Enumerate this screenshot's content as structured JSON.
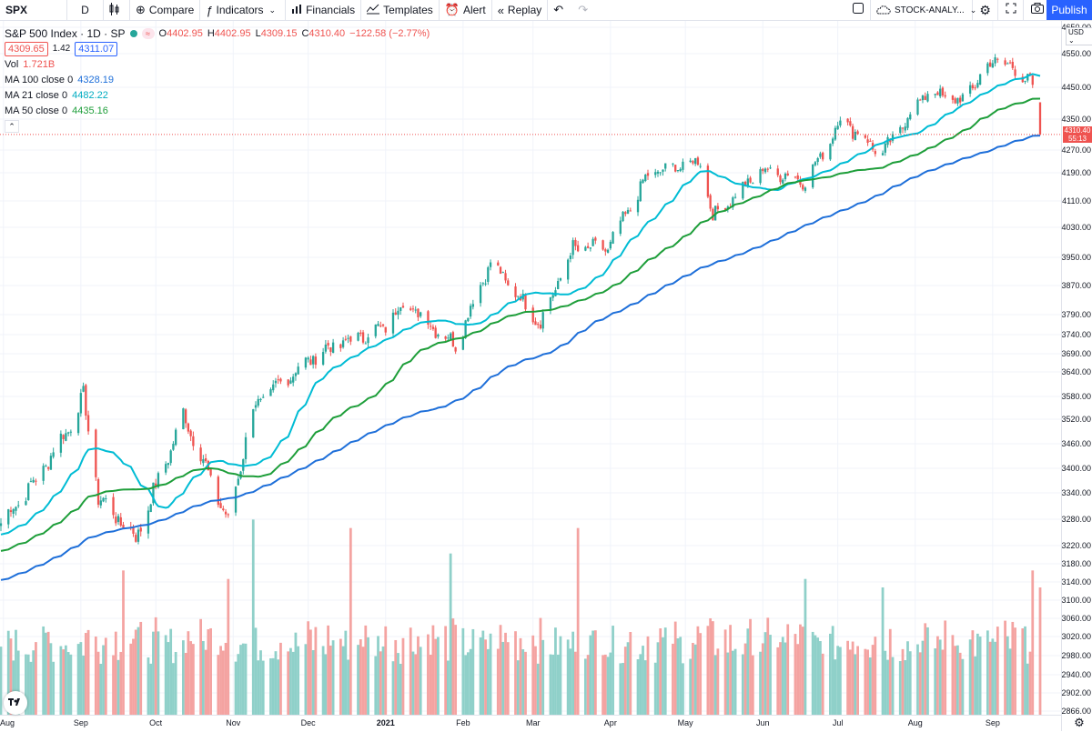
{
  "toolbar": {
    "symbol": "SPX",
    "resolution": "D",
    "compare": "Compare",
    "indicators": "Indicators",
    "financials": "Financials",
    "templates": "Templates",
    "alert": "Alert",
    "replay": "Replay",
    "layout_name": "STOCK-ANALY...",
    "publish": "Publish"
  },
  "legend": {
    "title": "S&P 500 Index · 1D · SP",
    "ohlc": {
      "o": "4402.95",
      "h": "4402.95",
      "l": "4309.15",
      "c": "4310.40",
      "chg": "−122.58 (−2.77%)"
    },
    "bid": "4309.65",
    "spread": "1.42",
    "ask": "4311.07",
    "vol_label": "Vol",
    "vol_value": "1.721B",
    "ma100_label": "MA 100 close 0",
    "ma100_value": "4328.19",
    "ma21_label": "MA 21 close 0",
    "ma21_value": "4482.22",
    "ma50_label": "MA 50 close 0",
    "ma50_value": "4435.16"
  },
  "price_axis": {
    "currency": "USD",
    "last_price": "4310.40",
    "countdown": "55:13"
  },
  "colors": {
    "up": "#26a69a",
    "down": "#ef5350",
    "ma21": "#00bcd4",
    "ma50": "#1e9e3a",
    "ma100": "#1e6fd9",
    "accent": "#2962ff"
  },
  "chart_data": {
    "type": "candlestick",
    "ylim": [
      2866,
      4650
    ],
    "y_ticks": [
      "4650.00",
      "4550.00",
      "4450.00",
      "4350.00",
      "4270.00",
      "4190.00",
      "4110.00",
      "4030.00",
      "3950.00",
      "3870.00",
      "3790.00",
      "3740.00",
      "3690.00",
      "3640.00",
      "3580.00",
      "3520.00",
      "3460.00",
      "3400.00",
      "3340.00",
      "3280.00",
      "3220.00",
      "3180.00",
      "3140.00",
      "3100.00",
      "3060.00",
      "3020.00",
      "2980.00",
      "2940.00",
      "2902.00",
      "2866.00"
    ],
    "x_ticks": [
      {
        "label": "Aug",
        "date": "2020-08-01"
      },
      {
        "label": "Sep",
        "date": "2020-09-01"
      },
      {
        "label": "Oct",
        "date": "2020-10-01"
      },
      {
        "label": "Nov",
        "date": "2020-11-01"
      },
      {
        "label": "Dec",
        "date": "2020-12-01"
      },
      {
        "label": "2021",
        "date": "2021-01-01"
      },
      {
        "label": "Feb",
        "date": "2021-02-01"
      },
      {
        "label": "Mar",
        "date": "2021-03-01"
      },
      {
        "label": "Apr",
        "date": "2021-04-01"
      },
      {
        "label": "May",
        "date": "2021-05-01"
      },
      {
        "label": "Jun",
        "date": "2021-06-01"
      },
      {
        "label": "Jul",
        "date": "2021-07-01"
      },
      {
        "label": "Aug",
        "date": "2021-08-01"
      },
      {
        "label": "Sep",
        "date": "2021-09-01"
      }
    ],
    "close_anchors": [
      [
        "2020-07-31",
        3271
      ],
      [
        "2020-08-14",
        3372
      ],
      [
        "2020-08-28",
        3508
      ],
      [
        "2020-09-02",
        3580
      ],
      [
        "2020-09-08",
        3331
      ],
      [
        "2020-09-23",
        3237
      ],
      [
        "2020-10-09",
        3477
      ],
      [
        "2020-10-12",
        3534
      ],
      [
        "2020-10-30",
        3270
      ],
      [
        "2020-11-09",
        3550
      ],
      [
        "2020-11-24",
        3635
      ],
      [
        "2020-12-08",
        3702
      ],
      [
        "2020-12-31",
        3756
      ],
      [
        "2021-01-08",
        3824
      ],
      [
        "2021-01-29",
        3714
      ],
      [
        "2021-02-12",
        3934
      ],
      [
        "2021-03-04",
        3768
      ],
      [
        "2021-03-17",
        3974
      ],
      [
        "2021-03-31",
        3973
      ],
      [
        "2021-04-16",
        4185
      ],
      [
        "2021-05-07",
        4232
      ],
      [
        "2021-05-12",
        4063
      ],
      [
        "2021-06-01",
        4202
      ],
      [
        "2021-06-18",
        4166
      ],
      [
        "2021-07-02",
        4352
      ],
      [
        "2021-07-19",
        4258
      ],
      [
        "2021-08-06",
        4437
      ],
      [
        "2021-08-19",
        4405
      ],
      [
        "2021-09-02",
        4537
      ],
      [
        "2021-09-16",
        4473
      ],
      [
        "2021-09-17",
        4433
      ],
      [
        "2021-09-20",
        4310
      ]
    ],
    "last_bar": {
      "date": "2021-09-20",
      "open": 4402.95,
      "high": 4402.95,
      "low": 4309.15,
      "close": 4310.4
    },
    "ma_series": [
      {
        "name": "MA 21 close 0",
        "last": 4482.22
      },
      {
        "name": "MA 50 close 0",
        "last": 4435.16
      },
      {
        "name": "MA 100 close 0",
        "last": 4328.19
      }
    ],
    "volume_last": "1.721B",
    "volume_range": [
      1.6,
      3.7
    ],
    "volume_spikes": [
      [
        "2020-09-18",
        3.3
      ],
      [
        "2020-10-30",
        3.2
      ],
      [
        "2020-11-09",
        3.9
      ],
      [
        "2020-12-18",
        3.8
      ],
      [
        "2021-01-27",
        3.5
      ],
      [
        "2021-03-19",
        3.8
      ],
      [
        "2021-06-18",
        3.2
      ],
      [
        "2021-07-19",
        3.1
      ],
      [
        "2021-09-17",
        3.3
      ]
    ]
  }
}
